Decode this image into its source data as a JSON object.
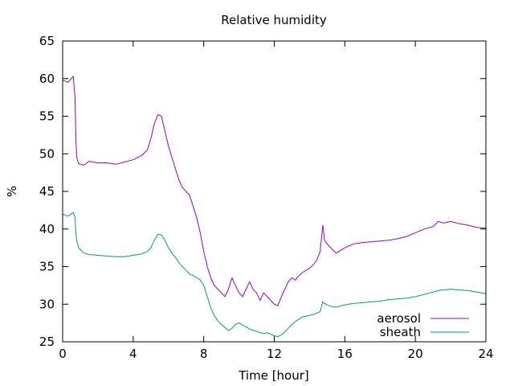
{
  "chart_data": {
    "type": "line",
    "title": "Relative humidity",
    "xlabel": "Time [hour]",
    "ylabel": "%",
    "xlim": [
      0,
      24
    ],
    "ylim": [
      25,
      65
    ],
    "xticks": [
      0,
      4,
      8,
      12,
      16,
      20,
      24
    ],
    "yticks": [
      25,
      30,
      35,
      40,
      45,
      50,
      55,
      60,
      65
    ],
    "grid": false,
    "legend_position": "bottom-right",
    "series": [
      {
        "name": "aerosol",
        "color": "#9400d3",
        "x": [
          0,
          0.3,
          0.6,
          0.7,
          0.75,
          0.8,
          0.9,
          1.2,
          1.5,
          2.0,
          2.5,
          3.0,
          3.5,
          4.0,
          4.5,
          4.8,
          5.0,
          5.2,
          5.4,
          5.6,
          5.8,
          6.0,
          6.2,
          6.4,
          6.6,
          6.8,
          7.0,
          7.2,
          7.4,
          7.6,
          7.8,
          8.0,
          8.2,
          8.4,
          8.6,
          8.8,
          9.0,
          9.2,
          9.4,
          9.6,
          9.8,
          10.0,
          10.2,
          10.4,
          10.6,
          10.8,
          11.0,
          11.2,
          11.4,
          11.6,
          11.8,
          12.0,
          12.2,
          12.4,
          12.6,
          12.8,
          13.0,
          13.2,
          13.4,
          13.6,
          13.8,
          14.0,
          14.2,
          14.4,
          14.6,
          14.75,
          14.85,
          15.0,
          15.2,
          15.5,
          15.8,
          16.0,
          16.5,
          17.0,
          17.5,
          18.0,
          18.5,
          19.0,
          19.5,
          20.0,
          20.5,
          21.0,
          21.3,
          21.6,
          22.0,
          22.5,
          23.0,
          23.5,
          24.0
        ],
        "values": [
          59.8,
          59.5,
          60.3,
          57.5,
          52,
          49.5,
          48.7,
          48.5,
          49,
          48.8,
          48.8,
          48.6,
          48.9,
          49.2,
          49.8,
          50.5,
          52,
          54,
          55.2,
          55,
          53,
          51,
          49.5,
          48,
          46.5,
          45.5,
          45,
          44.5,
          43,
          41.5,
          39.5,
          37,
          35,
          33.5,
          32.5,
          32,
          31.5,
          31,
          32,
          33.5,
          32.5,
          31.5,
          31,
          32,
          33,
          32,
          31.5,
          30.5,
          31.5,
          31,
          30.5,
          30,
          29.8,
          31,
          32,
          33,
          33.5,
          33.2,
          33.8,
          34.2,
          34.5,
          34.8,
          35.2,
          35.8,
          37,
          40.5,
          38.5,
          38,
          37.5,
          36.8,
          37.2,
          37.5,
          38,
          38.2,
          38.3,
          38.4,
          38.5,
          38.7,
          39,
          39.5,
          40,
          40.3,
          41,
          40.8,
          41,
          40.7,
          40.5,
          40.2,
          40.1
        ]
      },
      {
        "name": "sheath",
        "color": "#009e73",
        "x": [
          0,
          0.3,
          0.6,
          0.7,
          0.75,
          0.8,
          0.9,
          1.2,
          1.5,
          2.0,
          2.5,
          3.0,
          3.5,
          4.0,
          4.5,
          4.8,
          5.0,
          5.2,
          5.4,
          5.6,
          5.8,
          6.0,
          6.2,
          6.4,
          6.6,
          6.8,
          7.0,
          7.2,
          7.4,
          7.6,
          7.8,
          8.0,
          8.2,
          8.4,
          8.6,
          8.8,
          9.0,
          9.2,
          9.4,
          9.6,
          9.8,
          10.0,
          10.2,
          10.4,
          10.6,
          10.8,
          11.0,
          11.2,
          11.4,
          11.6,
          11.8,
          12.0,
          12.2,
          12.4,
          12.6,
          12.8,
          13.0,
          13.2,
          13.4,
          13.6,
          13.8,
          14.0,
          14.2,
          14.4,
          14.6,
          14.75,
          14.85,
          15.0,
          15.2,
          15.5,
          15.8,
          16.0,
          16.5,
          17.0,
          17.5,
          18.0,
          18.5,
          19.0,
          19.5,
          20.0,
          20.5,
          21.0,
          21.3,
          21.6,
          22.0,
          22.5,
          23.0,
          23.5,
          24.0
        ],
        "values": [
          42,
          41.7,
          42.2,
          41.5,
          39.5,
          38.5,
          37.5,
          36.8,
          36.6,
          36.5,
          36.4,
          36.3,
          36.3,
          36.5,
          36.7,
          37,
          37.5,
          38.5,
          39.3,
          39.2,
          38.5,
          37.5,
          36.8,
          36.2,
          35.5,
          35,
          34.5,
          34,
          33.8,
          33.5,
          33.2,
          32.5,
          31,
          29.5,
          28.5,
          27.8,
          27.3,
          26.9,
          26.5,
          26.8,
          27.3,
          27.5,
          27.2,
          27,
          26.7,
          26.5,
          26.4,
          26.2,
          26.1,
          26.2,
          26,
          25.8,
          25.7,
          25.9,
          26.3,
          26.8,
          27.3,
          27.7,
          28,
          28.3,
          28.4,
          28.5,
          28.6,
          28.8,
          29,
          30.3,
          30.1,
          29.9,
          29.7,
          29.6,
          29.8,
          29.9,
          30.1,
          30.2,
          30.3,
          30.4,
          30.6,
          30.7,
          30.8,
          31,
          31.3,
          31.6,
          31.8,
          31.9,
          32,
          31.9,
          31.8,
          31.6,
          31.4
        ]
      }
    ]
  }
}
